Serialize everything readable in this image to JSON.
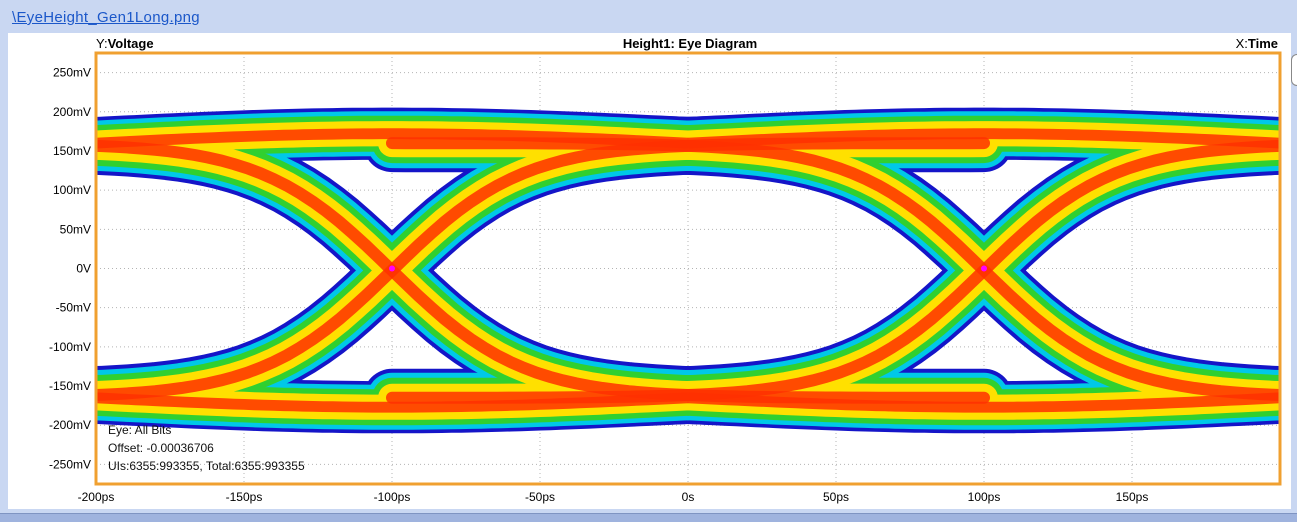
{
  "file_link": "\\EyeHeight_Gen1Long.png",
  "chart_data": {
    "type": "heatmap",
    "title": "Height1: Eye Diagram",
    "y_label_prefix": "Y:",
    "y_label": "Voltage",
    "x_label_prefix": "X:",
    "x_label": "Time",
    "xlim": [
      -200,
      200
    ],
    "ylim": [
      -275,
      275
    ],
    "x_ticks": [
      {
        "value": -200,
        "label": "-200ps"
      },
      {
        "value": -150,
        "label": "-150ps"
      },
      {
        "value": -100,
        "label": "-100ps"
      },
      {
        "value": -50,
        "label": "-50ps"
      },
      {
        "value": 0,
        "label": "0s"
      },
      {
        "value": 50,
        "label": "50ps"
      },
      {
        "value": 100,
        "label": "100ps"
      },
      {
        "value": 150,
        "label": "150ps"
      }
    ],
    "y_ticks": [
      {
        "value": 250,
        "label": "250mV"
      },
      {
        "value": 200,
        "label": "200mV"
      },
      {
        "value": 150,
        "label": "150mV"
      },
      {
        "value": 100,
        "label": "100mV"
      },
      {
        "value": 50,
        "label": "50mV"
      },
      {
        "value": 0,
        "label": "0V"
      },
      {
        "value": -50,
        "label": "-50mV"
      },
      {
        "value": -100,
        "label": "-100mV"
      },
      {
        "value": -150,
        "label": "-150mV"
      },
      {
        "value": -200,
        "label": "-200mV"
      },
      {
        "value": -250,
        "label": "-250mV"
      }
    ],
    "grid": true,
    "crossings": [
      -100,
      100
    ],
    "unit_interval_ps": 200,
    "levels_mV": [
      160,
      -165
    ],
    "inner_eye_mV": [
      -40,
      40
    ],
    "info": {
      "line1": "Eye: All Bits",
      "line2": "Offset: -0.00036706",
      "line3": "UIs:6355:993355, Total:6355:993355"
    },
    "colors": {
      "frame": "#f0a030",
      "outline": "#1515c8",
      "density_low": "#00c8e8",
      "density_mid": "#30d030",
      "density_high": "#ffe000",
      "density_peak": "#ff3000",
      "crossing_marker": "#ff00ff"
    }
  }
}
